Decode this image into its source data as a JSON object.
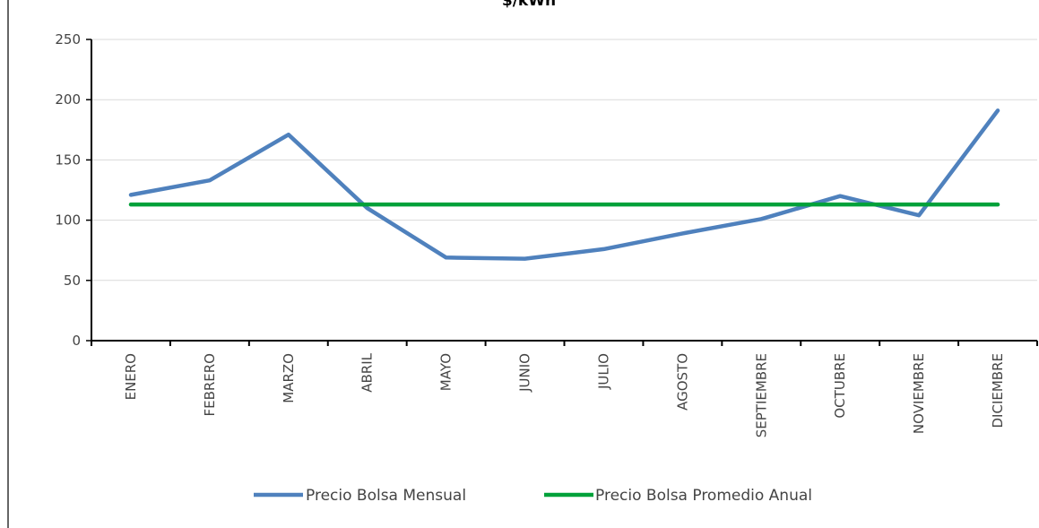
{
  "chart_data": {
    "type": "line",
    "title": "$/kWh",
    "xlabel": "",
    "ylabel": "",
    "categories": [
      "ENERO",
      "FEBRERO",
      "MARZO",
      "ABRIL",
      "MAYO",
      "JUNIO",
      "JULIO",
      "AGOSTO",
      "SEPTIEMBRE",
      "OCTUBRE",
      "NOVIEMBRE",
      "DICIEMBRE"
    ],
    "yticks": [
      0,
      50,
      100,
      150,
      200,
      250
    ],
    "ylim": [
      0,
      250
    ],
    "grid": true,
    "legend_position": "bottom",
    "series": [
      {
        "name": "Precio Bolsa Mensual",
        "color": "#4f81bd",
        "values": [
          121,
          133,
          171,
          110,
          69,
          68,
          76,
          89,
          101,
          120,
          104,
          191
        ]
      },
      {
        "name": "Precio Bolsa Promedio Anual",
        "color": "#00a13a",
        "values": [
          113,
          113,
          113,
          113,
          113,
          113,
          113,
          113,
          113,
          113,
          113,
          113
        ]
      }
    ]
  }
}
